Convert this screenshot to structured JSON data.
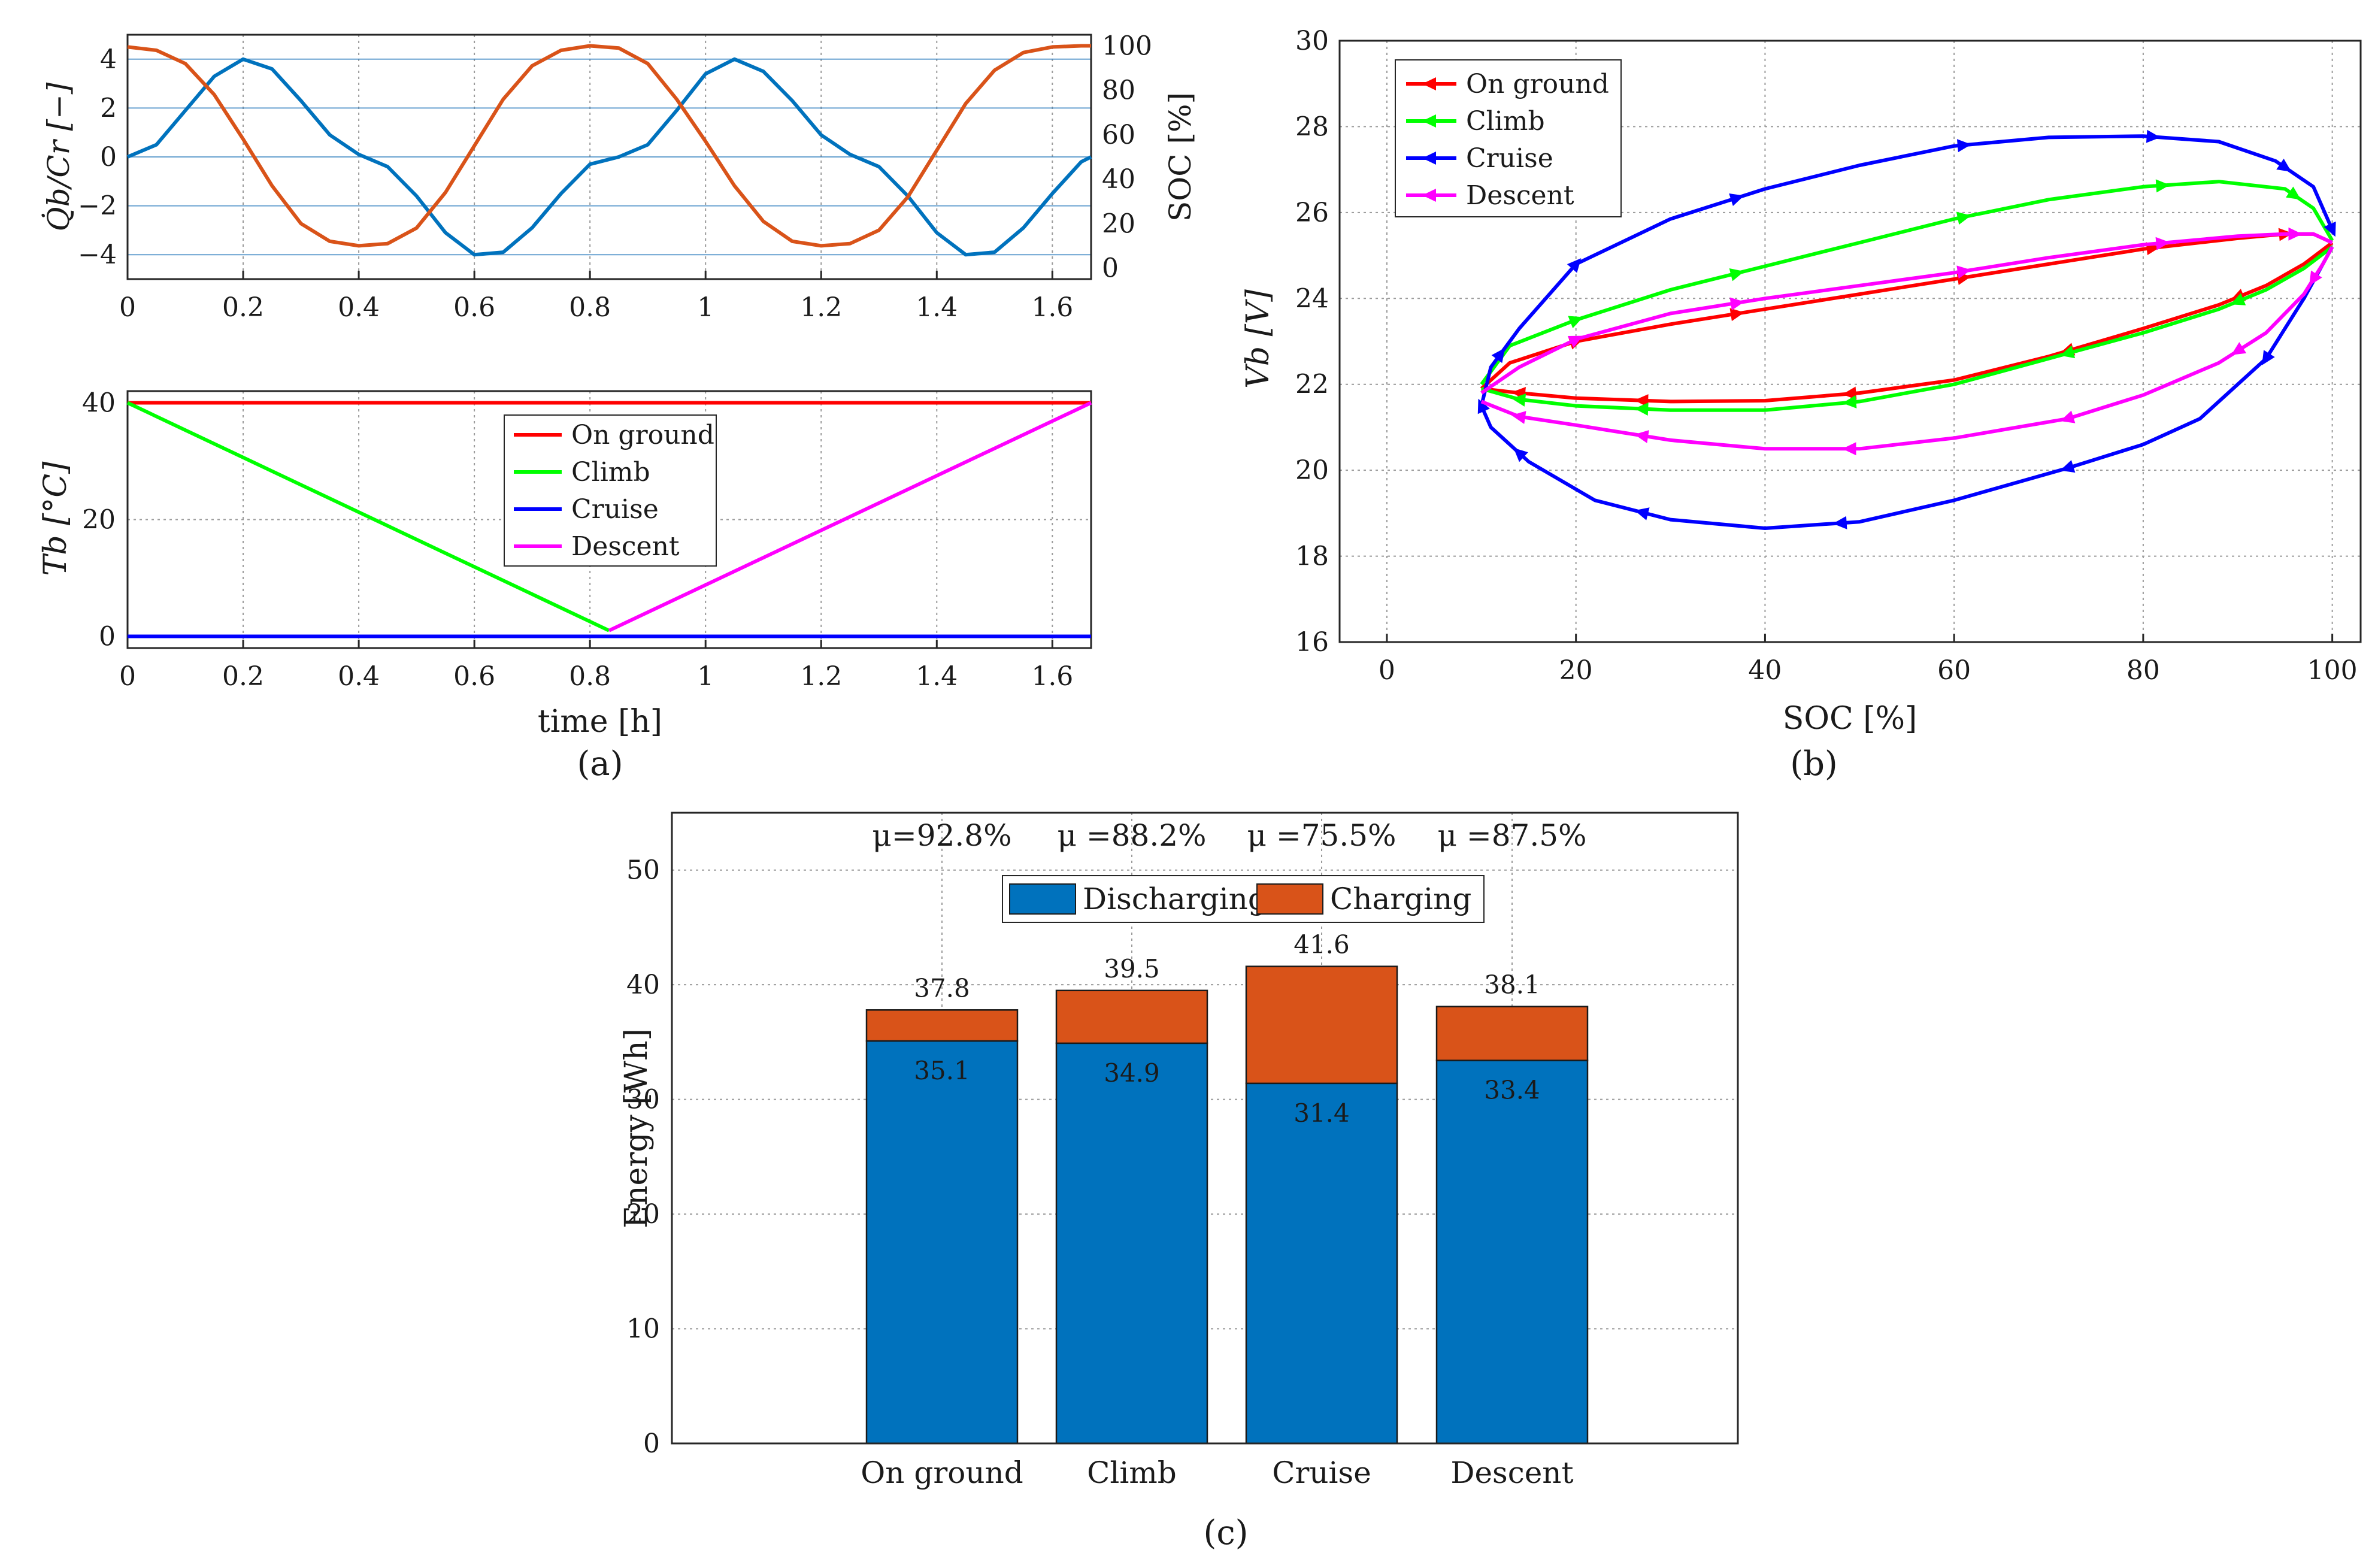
{
  "panel_labels": {
    "a": "(a)",
    "b": "(b)",
    "c": "(c)"
  },
  "colors": {
    "blue_line": "#0072BD",
    "orange_line": "#D95319",
    "on_ground": "#FF0000",
    "climb": "#00FF00",
    "cruise": "#0000FF",
    "descent": "#FF00FF",
    "bar_discharging": "#0072BD",
    "bar_charging": "#D95319"
  },
  "chart_data": [
    {
      "id": "a_top",
      "type": "line",
      "xlabel": "",
      "ylabel": "Q̇b/Cr [−]",
      "y2label": "SOC [%]",
      "xlim": [
        0,
        1.667
      ],
      "ylim": [
        -5,
        5
      ],
      "y2lim": [
        -5,
        105
      ],
      "xticks": [
        0,
        0.2,
        0.4,
        0.6,
        0.8,
        1,
        1.2,
        1.4,
        1.6
      ],
      "xticklabels": [
        "0",
        "0.2",
        "0.4",
        "0.6",
        "0.8",
        "1",
        "1.2",
        "1.4",
        "1.6"
      ],
      "yticks": [
        -4,
        -2,
        0,
        2,
        4
      ],
      "yticklabels": [
        "−4",
        "−2",
        "0",
        "2",
        "4"
      ],
      "y2ticks": [
        0,
        20,
        40,
        60,
        80,
        100
      ],
      "y2ticklabels": [
        "0",
        "20",
        "40",
        "60",
        "80",
        "100"
      ],
      "series": [
        {
          "name": "Q̇b/Cr",
          "axis": "left",
          "color": "#0072BD",
          "x": [
            0,
            0.05,
            0.1,
            0.15,
            0.2,
            0.25,
            0.3,
            0.35,
            0.4,
            0.45,
            0.5,
            0.55,
            0.6,
            0.65,
            0.7,
            0.75,
            0.8,
            0.85,
            0.9,
            0.95,
            1.0,
            1.05,
            1.1,
            1.15,
            1.2,
            1.25,
            1.3,
            1.35,
            1.4,
            1.45,
            1.5,
            1.55,
            1.6,
            1.65,
            1.667
          ],
          "y": [
            0,
            0.5,
            1.9,
            3.3,
            4.0,
            3.6,
            2.3,
            0.9,
            0.1,
            -0.4,
            -1.6,
            -3.1,
            -4.0,
            -3.9,
            -2.9,
            -1.5,
            -0.3,
            0,
            0.5,
            1.9,
            3.4,
            4.0,
            3.5,
            2.3,
            0.9,
            0.1,
            -0.4,
            -1.6,
            -3.1,
            -4.0,
            -3.9,
            -2.9,
            -1.5,
            -0.2,
            0
          ]
        },
        {
          "name": "SOC",
          "axis": "right",
          "color": "#D95319",
          "x": [
            0,
            0.05,
            0.1,
            0.15,
            0.2,
            0.25,
            0.3,
            0.35,
            0.4,
            0.45,
            0.5,
            0.55,
            0.6,
            0.65,
            0.7,
            0.75,
            0.8,
            0.85,
            0.9,
            0.95,
            1.0,
            1.05,
            1.1,
            1.15,
            1.2,
            1.25,
            1.3,
            1.35,
            1.4,
            1.45,
            1.5,
            1.55,
            1.6,
            1.65,
            1.667
          ],
          "y": [
            99.5,
            98,
            92,
            78,
            58,
            37,
            20,
            12,
            10,
            11,
            18,
            34,
            55,
            76,
            91,
            98,
            100,
            99,
            92,
            76,
            57,
            37,
            21,
            12,
            10,
            11,
            17,
            32,
            53,
            74,
            89,
            97,
            99.5,
            100,
            100
          ]
        }
      ]
    },
    {
      "id": "a_bottom",
      "type": "line",
      "xlabel": "time [h]",
      "ylabel": "Tb [°C]",
      "xlim": [
        0,
        1.667
      ],
      "ylim": [
        -2,
        42
      ],
      "xticks": [
        0,
        0.2,
        0.4,
        0.6,
        0.8,
        1,
        1.2,
        1.4,
        1.6
      ],
      "xticklabels": [
        "0",
        "0.2",
        "0.4",
        "0.6",
        "0.8",
        "1",
        "1.2",
        "1.4",
        "1.6"
      ],
      "yticks": [
        0,
        20,
        40
      ],
      "yticklabels": [
        "0",
        "20",
        "40"
      ],
      "legend_position": "top-center",
      "series": [
        {
          "name": "On ground",
          "color": "#FF0000",
          "x": [
            0,
            1.667
          ],
          "y": [
            40,
            40
          ]
        },
        {
          "name": "Climb",
          "color": "#00FF00",
          "x": [
            0,
            0.833
          ],
          "y": [
            40,
            1
          ]
        },
        {
          "name": "Cruise",
          "color": "#0000FF",
          "x": [
            0,
            1.667
          ],
          "y": [
            0,
            0
          ]
        },
        {
          "name": "Descent",
          "color": "#FF00FF",
          "x": [
            0.833,
            1.667
          ],
          "y": [
            1,
            40
          ]
        }
      ]
    },
    {
      "id": "b",
      "type": "line",
      "xlabel": "SOC [%]",
      "ylabel": "Vb [V]",
      "xlim": [
        -5,
        103
      ],
      "ylim": [
        16,
        30
      ],
      "xticks": [
        0,
        20,
        40,
        60,
        80,
        100
      ],
      "xticklabels": [
        "0",
        "20",
        "40",
        "60",
        "80",
        "100"
      ],
      "yticks": [
        16,
        18,
        20,
        22,
        24,
        26,
        28,
        30
      ],
      "yticklabels": [
        "16",
        "18",
        "20",
        "22",
        "24",
        "26",
        "28",
        "30"
      ],
      "legend_position": "top-left",
      "series": [
        {
          "name": "On ground",
          "color": "#FF0000",
          "upper": {
            "x": [
              10,
              13,
              20,
              30,
              40,
              50,
              60,
              70,
              80,
              90,
              95,
              98,
              100
            ],
            "y": [
              21.9,
              22.5,
              23.0,
              23.4,
              23.75,
              24.1,
              24.45,
              24.8,
              25.15,
              25.4,
              25.5,
              25.5,
              25.3
            ]
          },
          "lower": {
            "x": [
              100,
              97,
              93,
              88,
              80,
              70,
              60,
              50,
              40,
              30,
              20,
              14,
              10
            ],
            "y": [
              25.3,
              24.8,
              24.3,
              23.85,
              23.3,
              22.65,
              22.1,
              21.8,
              21.62,
              21.6,
              21.68,
              21.8,
              21.9
            ]
          },
          "upper_markers": [
            20,
            37,
            61,
            81,
            95
          ],
          "lower_markers": [
            90,
            72,
            49,
            27,
            14
          ]
        },
        {
          "name": "Climb",
          "color": "#00FF00",
          "upper": {
            "x": [
              10,
              13,
              20,
              30,
              40,
              50,
              60,
              70,
              80,
              88,
              95,
              98,
              100
            ],
            "y": [
              22.0,
              22.9,
              23.5,
              24.2,
              24.75,
              25.3,
              25.85,
              26.3,
              26.6,
              26.72,
              26.55,
              26.1,
              25.35
            ]
          },
          "lower": {
            "x": [
              100,
              97,
              93,
              88,
              80,
              70,
              60,
              50,
              40,
              30,
              20,
              14,
              10
            ],
            "y": [
              25.2,
              24.7,
              24.2,
              23.75,
              23.2,
              22.6,
              22.0,
              21.6,
              21.4,
              21.4,
              21.5,
              21.65,
              21.9
            ]
          },
          "upper_markers": [
            20,
            37,
            61,
            82,
            96
          ],
          "lower_markers": [
            90,
            72,
            49,
            27,
            14
          ]
        },
        {
          "name": "Cruise",
          "color": "#0000FF",
          "upper": {
            "x": [
              10,
              11,
              14,
              20,
              30,
              40,
              50,
              60,
              70,
              80,
              88,
              94,
              98,
              100
            ],
            "y": [
              21.5,
              22.4,
              23.3,
              24.8,
              25.85,
              26.55,
              27.1,
              27.55,
              27.75,
              27.78,
              27.65,
              27.2,
              26.6,
              25.6
            ]
          },
          "lower": {
            "x": [
              100,
              99,
              97,
              93,
              86,
              80,
              72,
              60,
              50,
              40,
              30,
              22,
              15,
              11,
              10
            ],
            "y": [
              25.2,
              24.8,
              24.0,
              22.6,
              21.2,
              20.6,
              20.05,
              19.3,
              18.8,
              18.65,
              18.85,
              19.3,
              20.2,
              21.0,
              21.5
            ]
          },
          "upper_markers": [
            12,
            20,
            37,
            61,
            81,
            95,
            100
          ],
          "lower_markers": [
            93,
            72,
            48,
            27,
            14,
            10
          ]
        },
        {
          "name": "Descent",
          "color": "#FF00FF",
          "upper": {
            "x": [
              10,
              14,
              20,
              30,
              40,
              50,
              60,
              70,
              80,
              90,
              95,
              98,
              100
            ],
            "y": [
              21.8,
              22.4,
              23.05,
              23.65,
              24.0,
              24.3,
              24.6,
              24.95,
              25.25,
              25.45,
              25.5,
              25.5,
              25.3
            ]
          },
          "lower": {
            "x": [
              100,
              99,
              97,
              93,
              88,
              80,
              72,
              60,
              50,
              40,
              30,
              20,
              14,
              10
            ],
            "y": [
              25.2,
              24.8,
              24.1,
              23.2,
              22.5,
              21.75,
              21.2,
              20.75,
              20.5,
              20.5,
              20.7,
              21.05,
              21.25,
              21.6
            ]
          },
          "upper_markers": [
            20,
            37,
            61,
            82,
            96
          ],
          "lower_markers": [
            98,
            90,
            72,
            49,
            27,
            14
          ]
        }
      ]
    },
    {
      "id": "c",
      "type": "bar",
      "stacked": true,
      "xlabel": "",
      "ylabel": "Energy [Wh]",
      "ylim": [
        0,
        55
      ],
      "yticks": [
        0,
        10,
        20,
        30,
        40,
        50
      ],
      "yticklabels": [
        "0",
        "10",
        "20",
        "30",
        "40",
        "50"
      ],
      "categories": [
        "On ground",
        "Climb",
        "Cruise",
        "Descent"
      ],
      "series": [
        {
          "name": "Discharging",
          "color": "#0072BD",
          "values": [
            35.1,
            34.9,
            31.4,
            33.4
          ]
        },
        {
          "name": "Charging",
          "color": "#D95319",
          "values": [
            2.7,
            4.6,
            10.2,
            4.7
          ]
        }
      ],
      "inner_labels": [
        "35.1",
        "34.9",
        "31.4",
        "33.4"
      ],
      "total_labels": [
        "37.8",
        "39.5",
        "41.6",
        "38.1"
      ],
      "efficiency_labels": [
        "μ=92.8%",
        "μ =88.2%",
        "μ =75.5%",
        "μ =87.5%"
      ],
      "legend_position": "top-center"
    }
  ]
}
